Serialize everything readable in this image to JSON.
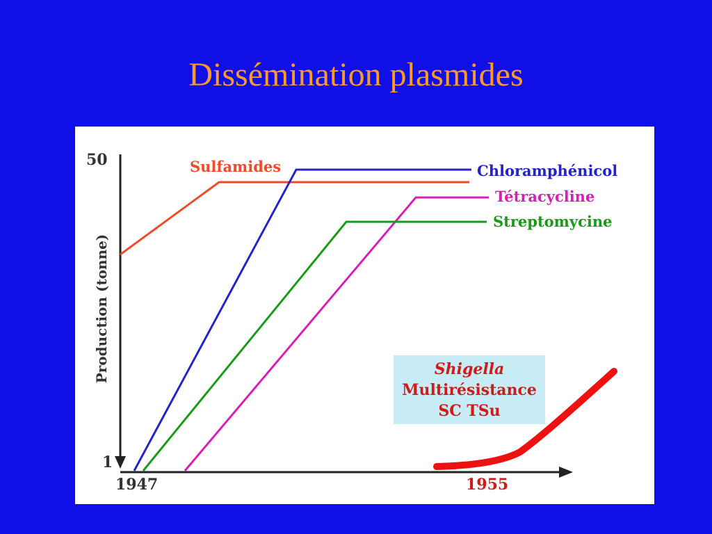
{
  "slide": {
    "title": "Dissémination plasmides",
    "title_color": "#ff9a26",
    "background": "#1010e6"
  },
  "chart_data": {
    "type": "line",
    "ylabel": "Production (tonne)",
    "y_ticks": [
      "50",
      "1"
    ],
    "x_ticks": [
      "1947",
      "1955"
    ],
    "series": [
      {
        "name": "Sulfamides",
        "color": "#ee4b2b"
      },
      {
        "name": "Chloramphénicol",
        "color": "#2323c8"
      },
      {
        "name": "Tétracycline",
        "color": "#d81fb4"
      },
      {
        "name": "Streptomycine",
        "color": "#1a9a1a"
      }
    ],
    "annotation": {
      "lines": [
        "Shigella",
        "Multirésistance",
        "SC TSu"
      ],
      "box_color": "#c8ecf6",
      "text_color": "#d11a1a",
      "curve_color": "#ee1111"
    }
  }
}
